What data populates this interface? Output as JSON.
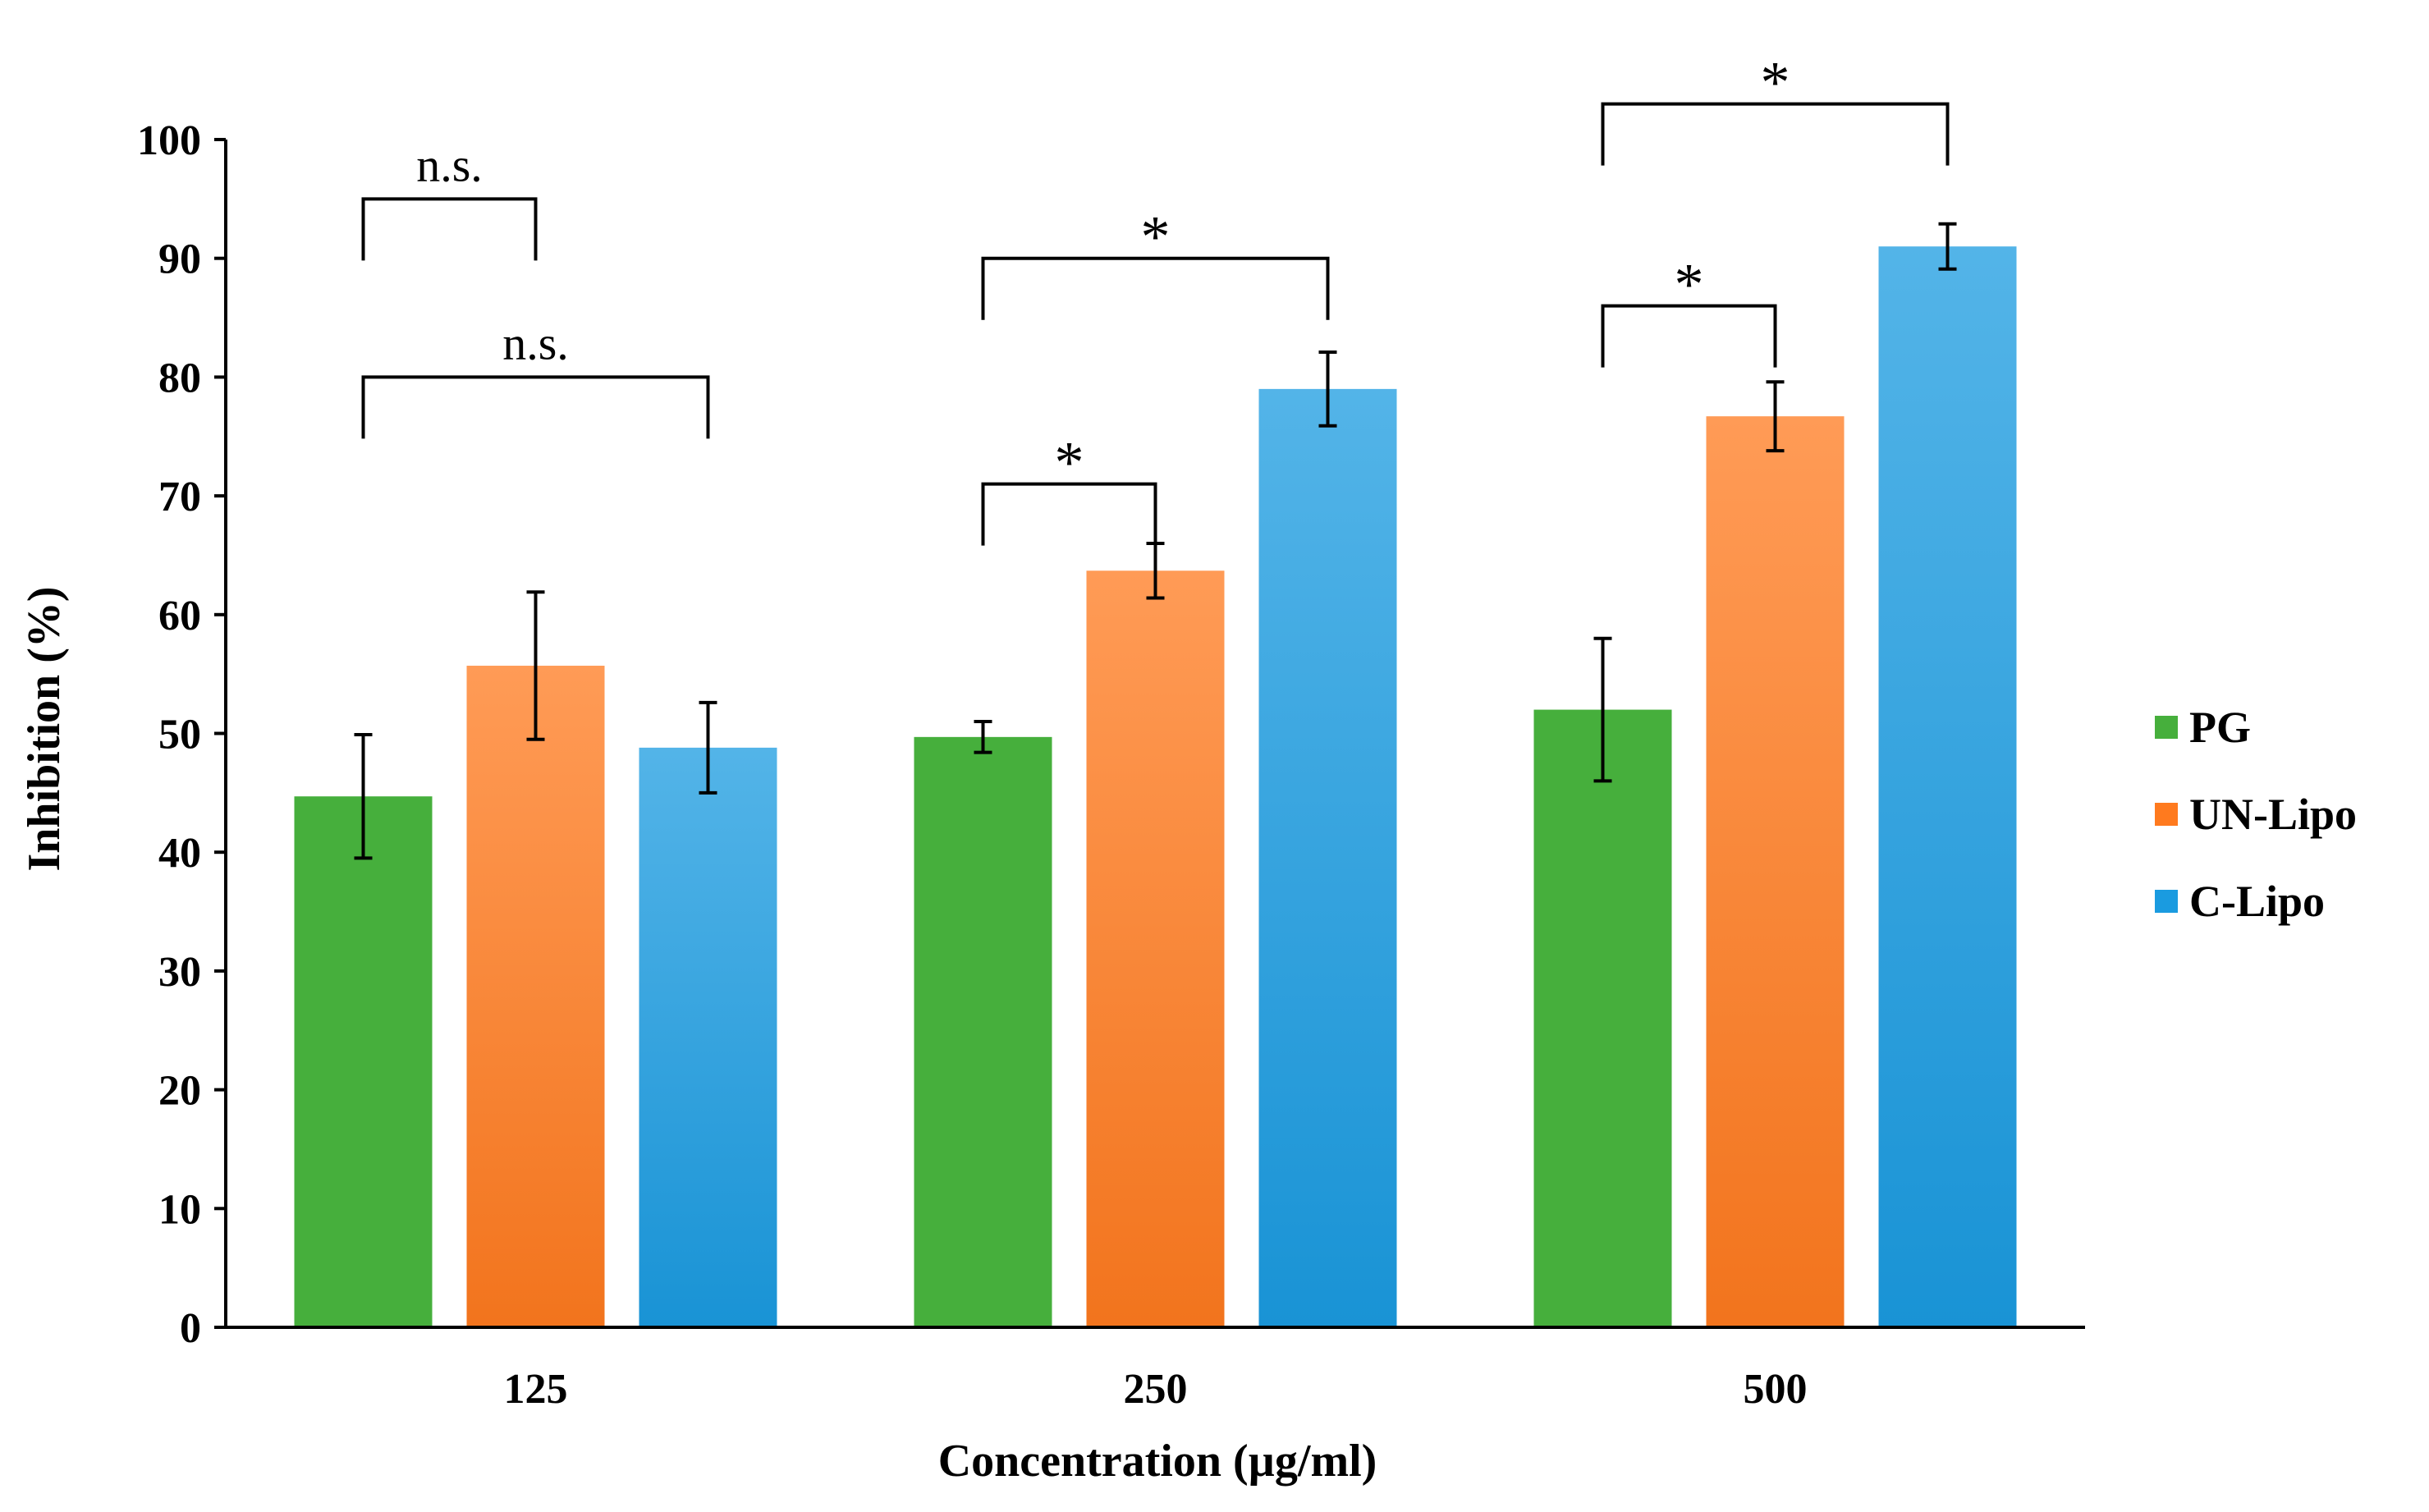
{
  "chart_data": {
    "type": "bar",
    "title": "",
    "xlabel": "Concentration (µg/ml)",
    "ylabel": "Inhibition (%)",
    "ylim": [
      0,
      100
    ],
    "yticks": [
      "0",
      "10",
      "20",
      "30",
      "40",
      "50",
      "60",
      "70",
      "80",
      "90",
      "100"
    ],
    "categories": [
      "125",
      "250",
      "500"
    ],
    "legend_position": "right",
    "grid": false,
    "series": [
      {
        "name": "PG",
        "color": "#46AF3C",
        "values": [
          44.7,
          49.7,
          52.0
        ],
        "errors": [
          5.2,
          1.3,
          6.0
        ]
      },
      {
        "name": "UN-Lipo",
        "color": "#FF7A1E",
        "values": [
          55.7,
          63.7,
          76.7
        ],
        "errors": [
          6.2,
          2.3,
          2.9
        ]
      },
      {
        "name": "C-Lipo",
        "color": "#1A9BE0",
        "values": [
          48.8,
          79.0,
          91.0
        ],
        "errors": [
          3.8,
          3.1,
          1.9
        ]
      }
    ],
    "significance": [
      {
        "category": 0,
        "from": 0,
        "to": 1,
        "label": "n.s.",
        "level": 95
      },
      {
        "category": 0,
        "from": 0,
        "to": 2,
        "label": "n.s.",
        "level": 80
      },
      {
        "category": 1,
        "from": 0,
        "to": 1,
        "label": "*",
        "level": 71
      },
      {
        "category": 1,
        "from": 0,
        "to": 2,
        "label": "*",
        "level": 90
      },
      {
        "category": 2,
        "from": 0,
        "to": 1,
        "label": "*",
        "level": 86
      },
      {
        "category": 2,
        "from": 0,
        "to": 2,
        "label": "*",
        "level": 103
      }
    ]
  }
}
